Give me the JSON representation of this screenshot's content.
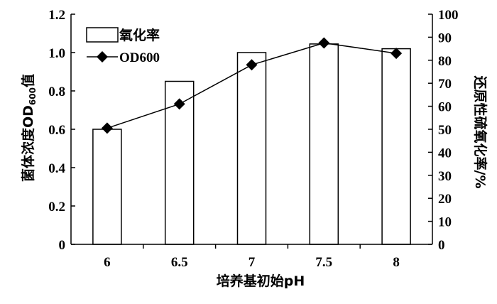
{
  "chart_data": {
    "type": "bar+line",
    "categories": [
      "6",
      "6.5",
      "7",
      "7.5",
      "8"
    ],
    "xlabel": "培养基初始pH",
    "ylabel_left_parts": {
      "before": "菌体浓度OD",
      "sub": "600",
      "after": "值"
    },
    "ylabel_right": "还原性硫氧化率/%",
    "ylim_left": [
      0,
      1.2
    ],
    "ylim_right": [
      0,
      100
    ],
    "left_ticks": [
      "0",
      "0.2",
      "0.4",
      "0.6",
      "0.8",
      "1.0",
      "1.2"
    ],
    "right_ticks": [
      "0",
      "10",
      "20",
      "30",
      "40",
      "50",
      "60",
      "70",
      "80",
      "90",
      "100"
    ],
    "series": [
      {
        "name": "氧化率",
        "kind": "bar",
        "axis": "left",
        "values": [
          0.6,
          0.85,
          1.0,
          1.045,
          1.02
        ]
      },
      {
        "name": "OD600",
        "kind": "line",
        "marker": "diamond",
        "axis": "right",
        "values": [
          50.5,
          61,
          78,
          87.5,
          83
        ]
      }
    ],
    "legend": "top-left",
    "grid": false,
    "colors": {
      "bar_fill": "#ffffff",
      "stroke": "#000000"
    }
  }
}
